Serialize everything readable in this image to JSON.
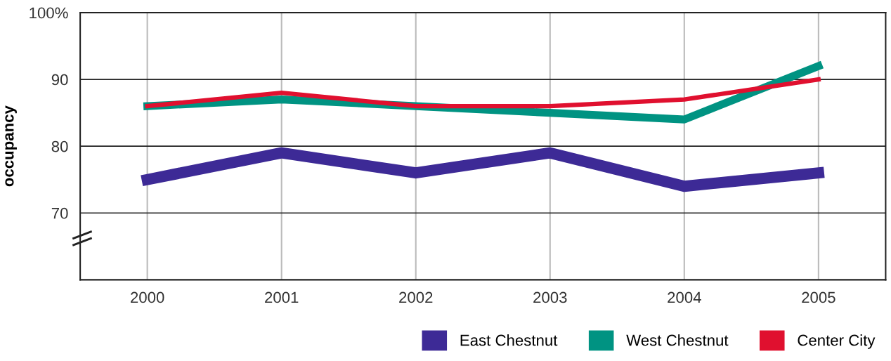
{
  "chart_data": {
    "type": "line",
    "ylabel": "occupancy",
    "categories": [
      "2000",
      "2001",
      "2002",
      "2003",
      "2004",
      "2005"
    ],
    "series": [
      {
        "name": "East Chestnut",
        "color": "#3d2a96",
        "values": [
          75,
          79,
          76,
          79,
          74,
          76
        ]
      },
      {
        "name": "West Chestnut",
        "color": "#009382",
        "values": [
          86,
          87,
          86,
          85,
          84,
          92
        ]
      },
      {
        "name": "Center City",
        "color": "#e0102f",
        "values": [
          86,
          88,
          86,
          86,
          87,
          90
        ]
      }
    ],
    "ylim": [
      60,
      100
    ],
    "yticks": [
      70,
      80,
      90,
      {
        "value": 100,
        "label": "100%"
      }
    ],
    "grid": true,
    "legend": "bottom right",
    "marker": "none",
    "line_style": "solid"
  }
}
